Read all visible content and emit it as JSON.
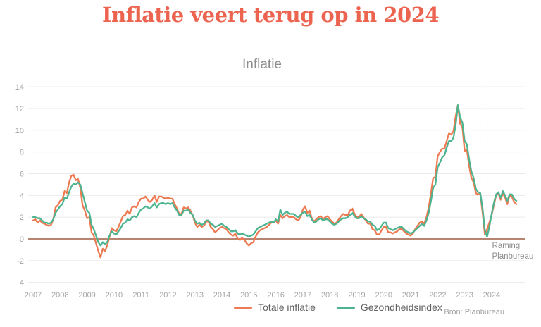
{
  "page": {
    "title": "Inflatie veert terug op in 2024",
    "source": "Bron: Planbureau"
  },
  "colors": {
    "title_text": "#ec6350",
    "subtitle_text": "#8c8c8c",
    "legend_text": "#5f5f5f",
    "source_text": "#a2a2a2",
    "annotation_text": "#8c8c8c"
  },
  "chart_data": {
    "type": "line",
    "title": "Inflatie",
    "x_unit": "monthly",
    "x_start": "2007-01",
    "x_end": "2024-12",
    "x_tick_years": [
      2007,
      2008,
      2009,
      2010,
      2011,
      2012,
      2013,
      2014,
      2015,
      2016,
      2017,
      2018,
      2019,
      2020,
      2021,
      2022,
      2023,
      2024
    ],
    "ylim": [
      -4,
      14
    ],
    "y_ticks": [
      14,
      12,
      10,
      8,
      6,
      4,
      2,
      0,
      -2,
      -4
    ],
    "grid": "horizontal",
    "grid_color": "#eaeaea",
    "zero_line_color": "#9d5c41",
    "tick_label_color": "#a5a5a5",
    "legend_position": "bottom",
    "forecast_divider": {
      "position": "2023-11",
      "month_index": 202,
      "label_lines": [
        "Raming",
        "Planbureau"
      ],
      "line_color": "#8a8a8a"
    },
    "series": [
      {
        "name": "Totale inflatie",
        "color": "#ee7a52",
        "values": [
          1.7,
          1.8,
          1.5,
          1.7,
          1.5,
          1.4,
          1.3,
          1.2,
          1.3,
          1.8,
          2.9,
          3.1,
          3.5,
          3.6,
          4.4,
          4.2,
          5.2,
          5.8,
          5.9,
          5.4,
          5.5,
          4.7,
          3.1,
          2.6,
          1.9,
          2.0,
          0.6,
          0.3,
          -0.4,
          -1.1,
          -1.7,
          -0.9,
          -1.1,
          -0.6,
          0.2,
          1.0,
          0.8,
          0.7,
          1.1,
          1.6,
          2.1,
          2.2,
          2.6,
          2.3,
          2.9,
          3.0,
          2.9,
          3.4,
          3.7,
          3.7,
          3.9,
          3.6,
          3.4,
          3.6,
          4.0,
          3.4,
          3.9,
          3.9,
          3.8,
          3.7,
          3.8,
          3.7,
          3.7,
          3.2,
          2.8,
          2.3,
          2.3,
          2.9,
          2.8,
          2.9,
          2.6,
          2.2,
          1.5,
          1.1,
          1.3,
          1.1,
          1.2,
          1.6,
          1.6,
          1.1,
          0.9,
          0.6,
          0.8,
          1.0,
          1.1,
          1.0,
          0.9,
          0.6,
          0.4,
          0.3,
          0.5,
          0.0,
          -0.1,
          0.1,
          -0.1,
          -0.4,
          -0.6,
          -0.4,
          -0.3,
          0.2,
          0.6,
          0.8,
          0.9,
          1.0,
          1.1,
          1.3,
          1.5,
          1.5,
          1.7,
          1.4,
          2.2,
          1.9,
          2.1,
          2.2,
          2.0,
          2.0,
          2.0,
          1.8,
          1.7,
          2.0,
          2.7,
          3.0,
          2.4,
          2.6,
          1.9,
          1.6,
          1.8,
          2.0,
          2.1,
          1.8,
          2.0,
          2.1,
          1.8,
          1.6,
          1.4,
          1.5,
          1.8,
          2.1,
          2.3,
          2.2,
          2.2,
          2.6,
          2.8,
          2.3,
          2.0,
          2.0,
          2.3,
          2.0,
          1.7,
          1.4,
          1.4,
          0.9,
          0.8,
          0.4,
          0.4,
          0.8,
          1.1,
          1.1,
          0.6,
          0.6,
          0.5,
          0.6,
          0.7,
          0.9,
          0.9,
          0.7,
          0.5,
          0.4,
          0.3,
          0.5,
          0.9,
          1.2,
          1.5,
          1.6,
          1.4,
          2.0,
          2.9,
          4.2,
          5.6,
          5.7,
          7.6,
          8.0,
          8.3,
          8.3,
          9.0,
          9.7,
          9.6,
          9.9,
          11.3,
          12.3,
          10.6,
          10.3,
          8.1,
          8.2,
          6.7,
          5.6,
          5.2,
          4.2,
          4.1,
          4.1,
          2.4,
          0.4,
          0.9,
          1.5,
          2.2,
          3.1,
          4.0,
          4.2,
          3.6,
          4.2,
          3.8,
          3.2,
          4.0,
          3.9,
          3.4,
          3.2
        ]
      },
      {
        "name": "Gezondheidsindex",
        "color": "#4db48f",
        "values": [
          2.0,
          2.0,
          1.9,
          1.9,
          1.7,
          1.5,
          1.5,
          1.4,
          1.5,
          1.8,
          2.4,
          2.7,
          3.0,
          3.2,
          3.8,
          3.7,
          4.3,
          4.8,
          5.1,
          5.0,
          5.2,
          5.0,
          4.2,
          3.4,
          2.6,
          2.4,
          1.3,
          0.9,
          0.3,
          -0.3,
          -0.6,
          -0.3,
          -0.5,
          -0.3,
          0.3,
          0.7,
          0.5,
          0.4,
          0.7,
          1.0,
          1.4,
          1.5,
          1.8,
          1.7,
          2.0,
          2.1,
          2.0,
          2.4,
          2.7,
          2.8,
          3.0,
          2.9,
          2.8,
          3.0,
          3.3,
          2.9,
          3.2,
          3.3,
          3.3,
          3.2,
          3.3,
          3.2,
          3.3,
          2.9,
          2.6,
          2.2,
          2.2,
          2.6,
          2.6,
          2.7,
          2.4,
          2.2,
          1.7,
          1.4,
          1.5,
          1.3,
          1.4,
          1.7,
          1.7,
          1.4,
          1.3,
          1.1,
          1.2,
          1.3,
          1.4,
          1.2,
          1.1,
          0.9,
          0.7,
          0.7,
          0.8,
          0.5,
          0.4,
          0.5,
          0.4,
          0.3,
          0.2,
          0.3,
          0.4,
          0.7,
          1.0,
          1.1,
          1.2,
          1.3,
          1.4,
          1.5,
          1.6,
          1.5,
          1.8,
          1.6,
          2.7,
          2.2,
          2.4,
          2.5,
          2.3,
          2.3,
          2.3,
          2.1,
          2.0,
          2.2,
          2.4,
          2.5,
          2.1,
          2.2,
          1.8,
          1.5,
          1.6,
          1.8,
          1.9,
          1.7,
          1.8,
          1.8,
          1.6,
          1.4,
          1.3,
          1.4,
          1.6,
          1.8,
          1.9,
          1.9,
          2.0,
          2.2,
          2.4,
          2.1,
          1.9,
          1.9,
          2.1,
          1.9,
          1.8,
          1.6,
          1.6,
          1.3,
          1.2,
          0.8,
          0.9,
          1.2,
          1.5,
          1.5,
          1.0,
          0.9,
          0.8,
          0.9,
          1.0,
          1.1,
          1.1,
          0.9,
          0.7,
          0.6,
          0.5,
          0.6,
          0.8,
          1.0,
          1.2,
          1.4,
          1.2,
          1.7,
          2.4,
          3.5,
          4.7,
          5.0,
          6.6,
          7.0,
          7.5,
          7.7,
          8.4,
          9.0,
          9.0,
          9.3,
          10.5,
          12.3,
          11.2,
          10.7,
          9.0,
          8.7,
          7.3,
          6.2,
          5.6,
          4.6,
          4.3,
          4.2,
          2.8,
          0.8,
          0.2,
          1.1,
          2.3,
          3.3,
          4.1,
          4.3,
          3.8,
          4.4,
          4.0,
          3.5,
          4.1,
          4.1,
          3.7,
          3.5
        ]
      }
    ]
  }
}
